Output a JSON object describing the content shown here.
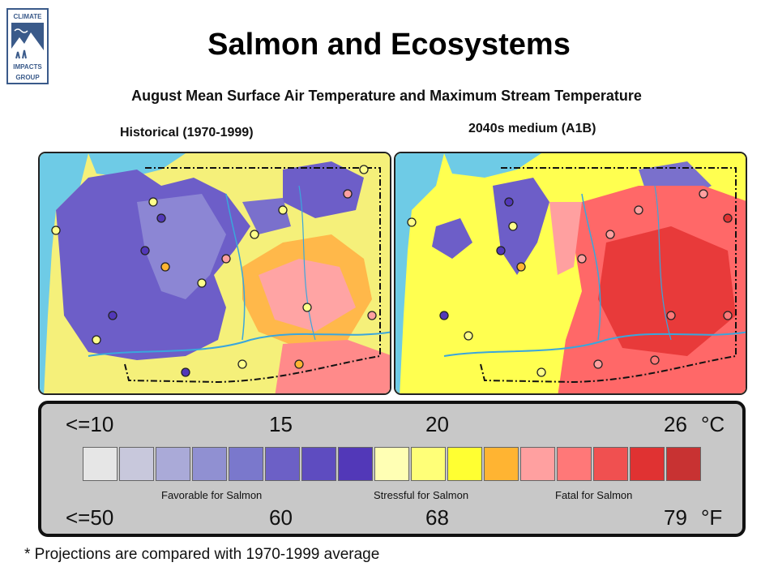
{
  "logo": {
    "lines": [
      "CLIMATE",
      "IMPACTS",
      "GROUP"
    ]
  },
  "title": "Salmon and Ecosystems",
  "subtitle": "August Mean Surface Air Temperature and Maximum Stream Temperature",
  "panels": [
    {
      "label": "Historical (1970-1999)"
    },
    {
      "label": "2040s medium (A1B)"
    }
  ],
  "legend": {
    "celsius_ticks": [
      "<=10",
      "15",
      "20",
      "26"
    ],
    "celsius_unit": "°C",
    "fahrenheit_ticks": [
      "<=50",
      "60",
      "68",
      "79"
    ],
    "fahrenheit_unit": "°F",
    "categories": [
      "Favorable for Salmon",
      "Stressful for Salmon",
      "Fatal for Salmon"
    ],
    "colors": [
      "#e6e6e6",
      "#c8c8dc",
      "#aaaad8",
      "#9090d2",
      "#7a78cc",
      "#6c60c6",
      "#5e4cc0",
      "#5238b8",
      "#ffffb4",
      "#ffff78",
      "#ffff32",
      "#ffb432",
      "#ffa0a0",
      "#ff7878",
      "#f05050",
      "#e03232",
      "#c83232"
    ]
  },
  "footnote": "* Projections are compared with 1970-1999 average"
}
